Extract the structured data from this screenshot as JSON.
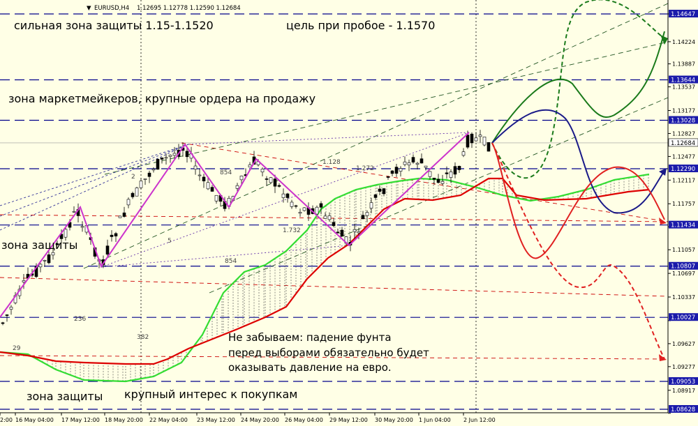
{
  "header": {
    "arrow": "▼",
    "symbol": "EURUSD,H4",
    "ohlc": "1.12695 1.12778 1.12590 1.12684"
  },
  "chart_data": {
    "type": "candlestick",
    "ylim": [
      1.0855,
      1.148
    ],
    "y_ticks": [
      "1.14647",
      "1.14224",
      "1.13887",
      "1.13537",
      "1.13177",
      "1.12827",
      "1.12477",
      "1.12117",
      "1.11757",
      "1.11407",
      "1.11057",
      "1.10697",
      "1.10337",
      "1.09977",
      "1.09627",
      "1.09277",
      "1.08917",
      "1.08567"
    ],
    "levels": [
      {
        "price": 1.14647,
        "label": "1.14647"
      },
      {
        "price": 1.13644,
        "label": "1.13644"
      },
      {
        "price": 1.13028,
        "label": "1.13028"
      },
      {
        "price": 1.1229,
        "label": "1.12290"
      },
      {
        "price": 1.11434,
        "label": "1.11434"
      },
      {
        "price": 1.10807,
        "label": "1.10807"
      },
      {
        "price": 1.10027,
        "label": "1.10027"
      },
      {
        "price": 1.09053,
        "label": "1.09053"
      },
      {
        "price": 1.08628,
        "label": "1.08628"
      }
    ],
    "current_price": {
      "price": 1.12684,
      "label": "1.12684"
    },
    "x_labels": [
      "2:00",
      "16 May 04:00",
      "17 May 12:00",
      "18 May 20:00",
      "22 May 04:00",
      "23 May 12:00",
      "24 May 20:00",
      "26 May 04:00",
      "29 May 12:00",
      "30 May 20:00",
      "1 Jun 04:00",
      "2 Jun 12:00"
    ],
    "fib_labels": [
      "854",
      "1.128",
      "1.272",
      "1.732",
      "854",
      "236",
      "382",
      "5",
      "2",
      "29"
    ],
    "colors": {
      "zigzag": "#cc33cc",
      "level_line": "#00008b",
      "cloud_fast": "#33dd33",
      "cloud_slow": "#dd0000",
      "forecast_green": "#1a7a1a",
      "forecast_blue": "#1a1a88",
      "forecast_red": "#e02020"
    }
  },
  "annotations": {
    "strong_zone": "сильная зона защиты 1.15-1.1520",
    "target": "цель при пробое - 1.1570",
    "mm_zone": "зона маркетмейкеров, крупные ордера на продажу",
    "defense_mid": "зона защиты",
    "defense_low": "зона защиты",
    "buy_interest": "крупный интерес к покупкам",
    "note_1": "Не забываем: падение фунта",
    "note_2": "перед выборами обязательно будет",
    "note_3": "оказывать давление на евро."
  }
}
